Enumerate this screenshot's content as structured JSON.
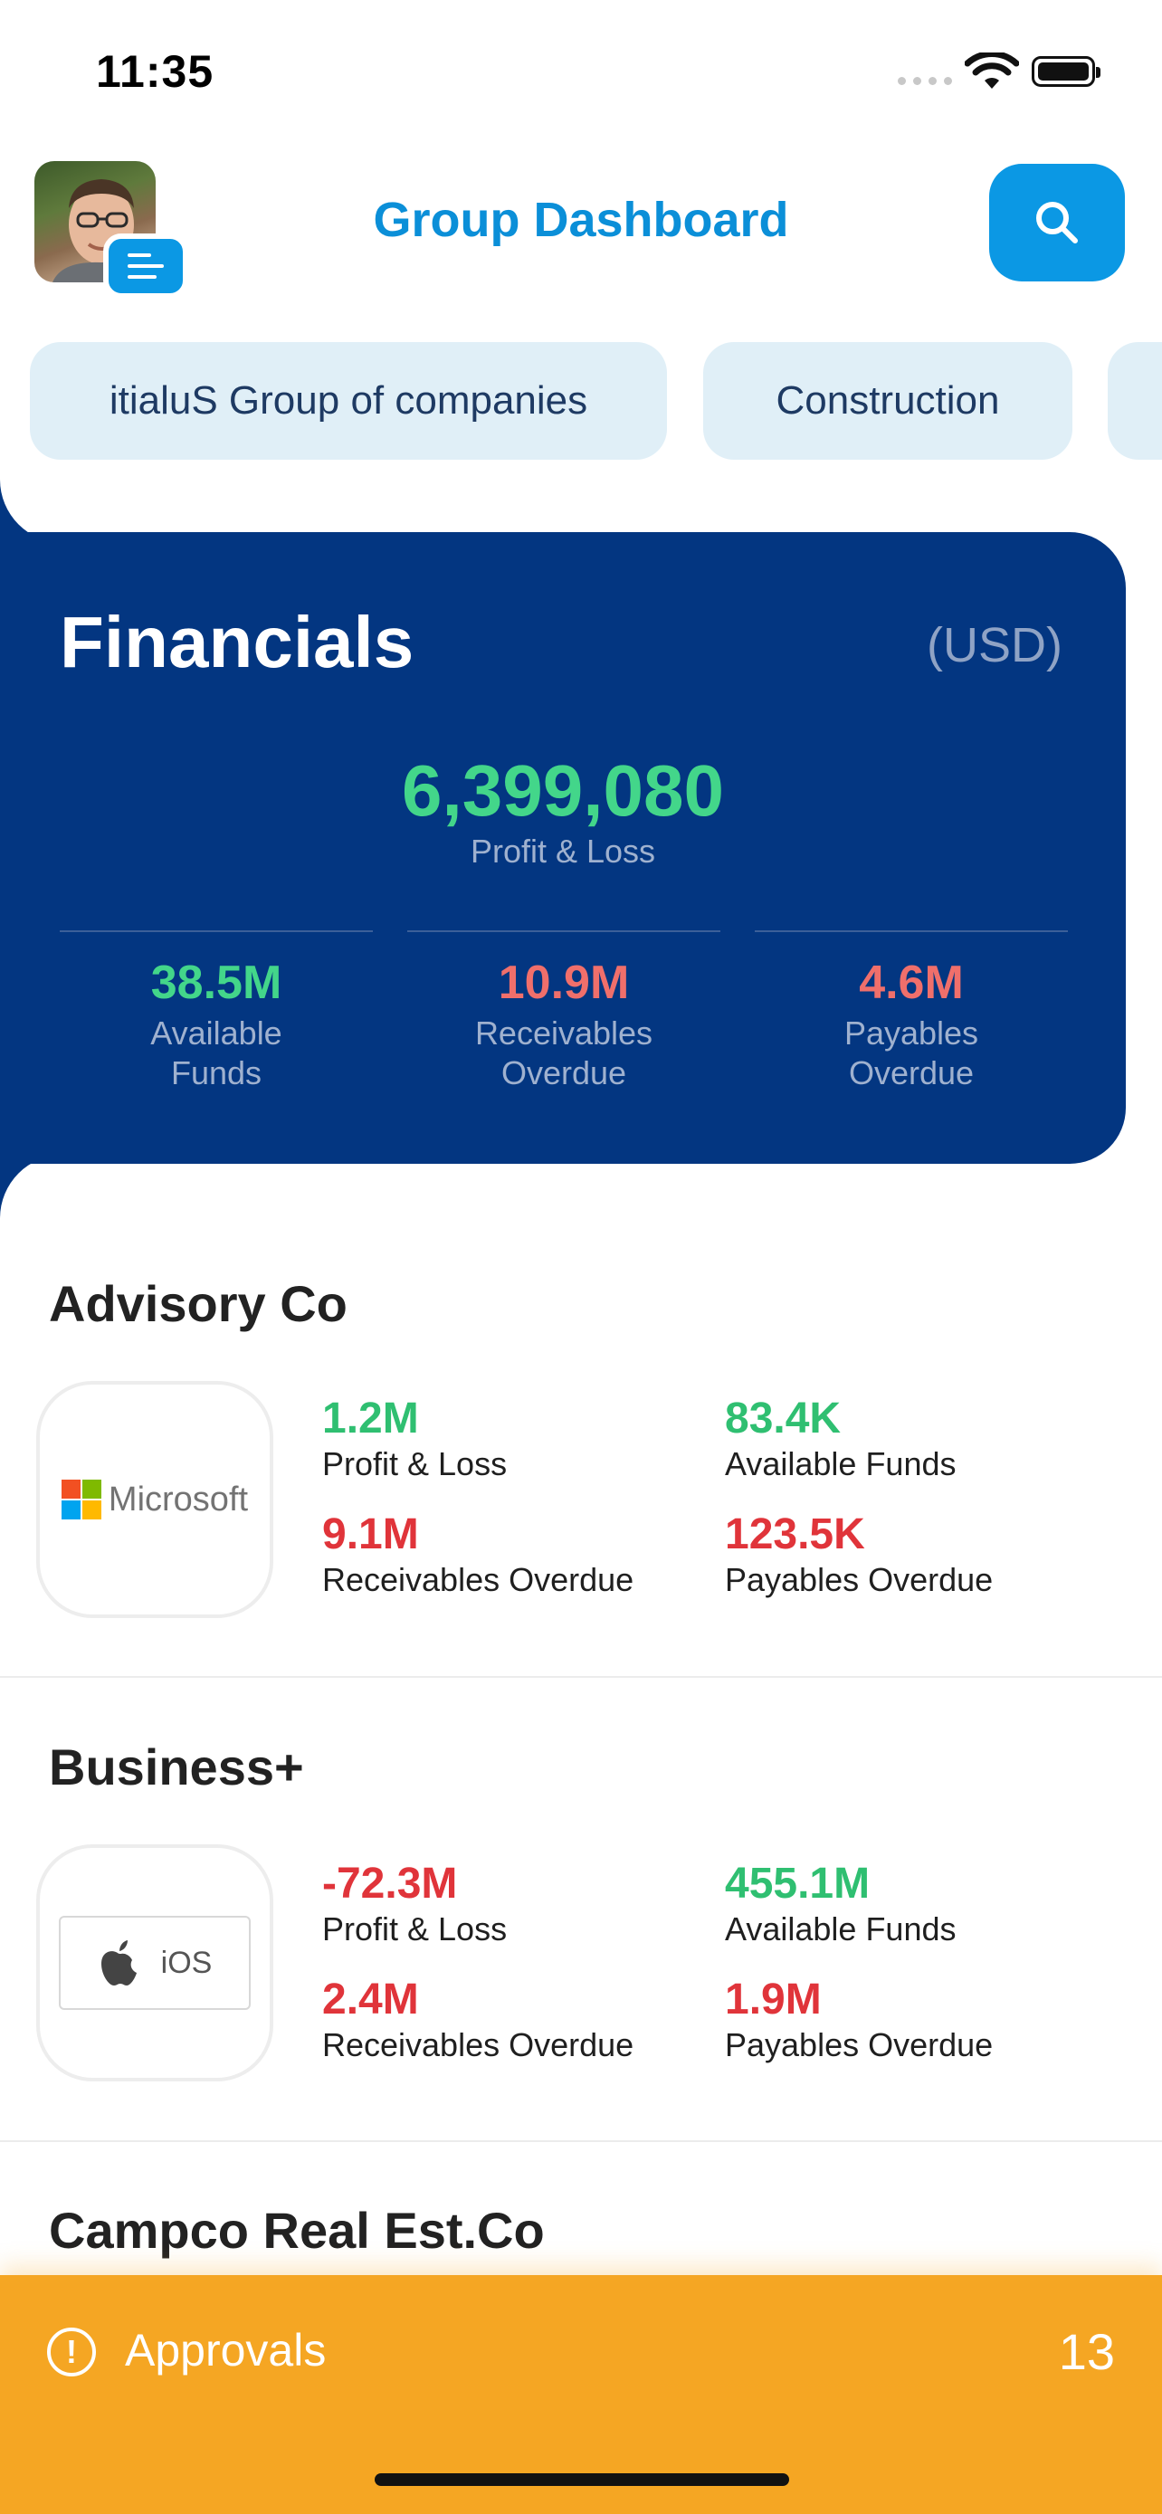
{
  "status_bar": {
    "time": "11:35"
  },
  "header": {
    "title": "Group Dashboard"
  },
  "chips": [
    {
      "label": "itialuS Group of companies"
    },
    {
      "label": "Construction"
    }
  ],
  "financials": {
    "title": "Financials",
    "currency": "(USD)",
    "total_value": "6,399,080",
    "total_label": "Profit & Loss",
    "metrics": [
      {
        "value": "38.5M",
        "label_line1": "Available",
        "label_line2": "Funds",
        "color": "#43d68a"
      },
      {
        "value": "10.9M",
        "label_line1": "Receivables",
        "label_line2": "Overdue",
        "color": "#f06f6b"
      },
      {
        "value": "4.6M",
        "label_line1": "Payables",
        "label_line2": "Overdue",
        "color": "#f06f6b"
      }
    ]
  },
  "companies": [
    {
      "name": "Advisory Co",
      "logo_text": "Microsoft",
      "metrics": [
        {
          "value": "1.2M",
          "label": "Profit & Loss"
        },
        {
          "value": "83.4K",
          "label": "Available Funds"
        },
        {
          "value": "9.1M",
          "label": "Receivables Overdue"
        },
        {
          "value": "123.5K",
          "label": "Payables Overdue"
        }
      ]
    },
    {
      "name": "Business+",
      "logo_text": "iOS",
      "metrics": [
        {
          "value": "-72.3M",
          "label": "Profit & Loss"
        },
        {
          "value": "455.1M",
          "label": "Available Funds"
        },
        {
          "value": "2.4M",
          "label": "Receivables Overdue"
        },
        {
          "value": "1.9M",
          "label": "Payables Overdue"
        }
      ]
    },
    {
      "name": "Campco Real Est.Co"
    }
  ],
  "approvals": {
    "label": "Approvals",
    "count": "13",
    "icon": "!"
  },
  "colors": {
    "brand_blue": "#0b98e4",
    "card_navy": "#033681",
    "positive": "#2fbf71",
    "negative": "#e0343a",
    "approvals_orange": "#f5a623"
  }
}
